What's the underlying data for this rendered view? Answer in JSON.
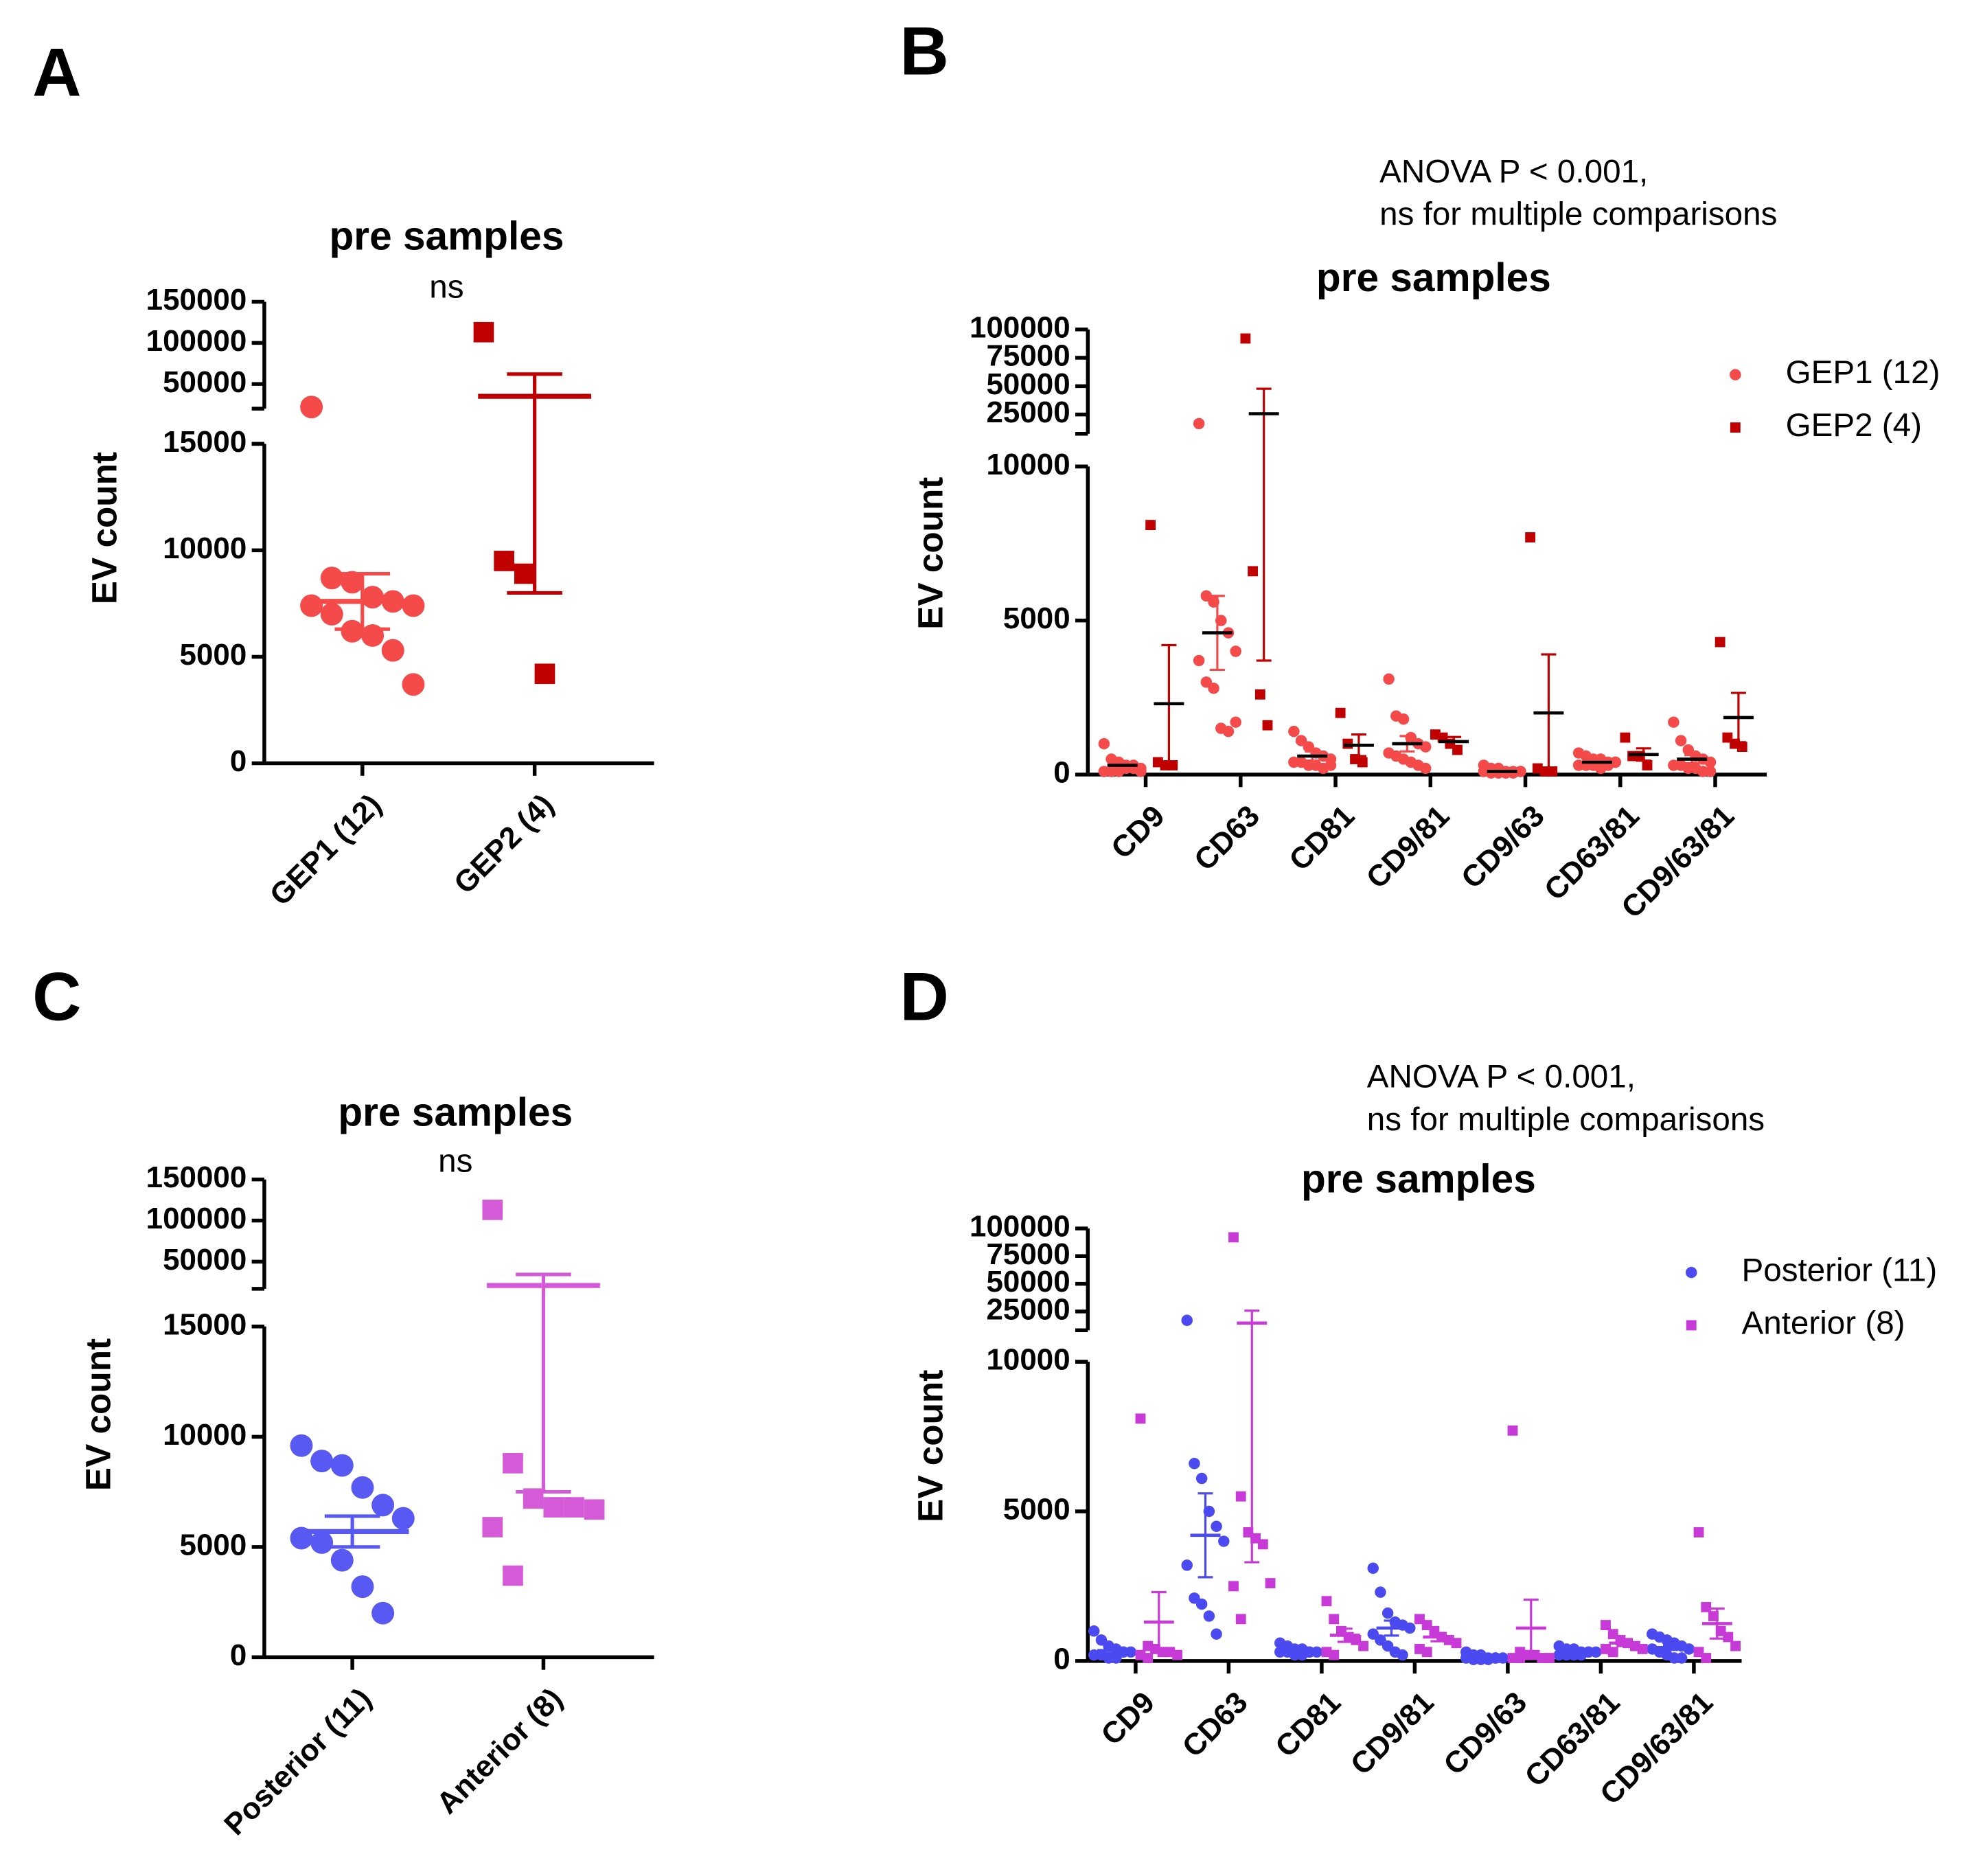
{
  "chart_data": [
    {
      "type": "dot",
      "panel_label": "A",
      "title": "pre samples",
      "subtitle": "ns",
      "ylabel": "EV count",
      "categories": [
        "GEP1 (12)",
        "GEP2 (4)"
      ],
      "values": [
        [
          22000,
          8700,
          8500,
          7800,
          7600,
          7400,
          7400,
          7000,
          6200,
          6000,
          5300,
          3700
        ],
        [
          113000,
          9500,
          8900,
          4200
        ]
      ],
      "colors": [
        "#f54a4a",
        "#c00000"
      ],
      "markers": [
        "circle",
        "square"
      ],
      "means": [
        7600,
        35000
      ],
      "errors": [
        1300,
        27000
      ],
      "ylim": [
        0,
        15000
      ],
      "yticks": [
        0,
        5000,
        10000,
        15000
      ],
      "ylim_upper": [
        20000,
        150000
      ],
      "yticks_upper": [
        50000,
        100000,
        150000
      ]
    },
    {
      "type": "grouped-dot",
      "panel_label": "B",
      "title": "pre samples",
      "annotation": [
        "ANOVA P < 0.001,",
        "ns for multiple comparisons"
      ],
      "ylabel": "EV count",
      "categories": [
        "CD9",
        "CD63",
        "CD81",
        "CD9/81",
        "CD9/63",
        "CD63/81",
        "CD9/63/81"
      ],
      "mean_color": "#000000",
      "series": [
        {
          "name": "GEP1 (12)",
          "color": "#f54a4a",
          "marker": "circle",
          "values": [
            [
              1000,
              500,
              400,
              300,
              200,
              200,
              100,
              100,
              100,
              200,
              300,
              100
            ],
            [
              17000,
              5800,
              5600,
              5000,
              4600,
              4000,
              3700,
              3000,
              2800,
              1500,
              1400,
              1700
            ],
            [
              1400,
              1100,
              900,
              700,
              600,
              500,
              400,
              400,
              300,
              300,
              200,
              300
            ],
            [
              3100,
              1900,
              1800,
              1200,
              1000,
              900,
              700,
              600,
              500,
              400,
              300,
              200
            ],
            [
              300,
              200,
              200,
              100,
              100,
              100,
              100,
              50,
              50,
              50,
              50,
              100
            ],
            [
              700,
              600,
              500,
              500,
              400,
              400,
              300,
              300,
              300,
              200,
              300,
              400
            ],
            [
              1700,
              1100,
              800,
              600,
              500,
              400,
              300,
              300,
              200,
              200,
              100,
              100
            ]
          ],
          "means": [
            300,
            4600,
            600,
            1000,
            100,
            400,
            500
          ],
          "errors": [
            80,
            1200,
            150,
            250,
            30,
            60,
            130
          ]
        },
        {
          "name": "GEP2 (4)",
          "color": "#c00000",
          "marker": "square",
          "values": [
            [
              8100,
              400,
              300,
              300
            ],
            [
              92000,
              6600,
              2600,
              1600
            ],
            [
              2000,
              1000,
              500,
              400
            ],
            [
              1300,
              1200,
              1000,
              800
            ],
            [
              7700,
              200,
              100,
              100
            ],
            [
              1200,
              600,
              600,
              300
            ],
            [
              4300,
              1200,
              1000,
              900
            ]
          ],
          "means": [
            2300,
            25700,
            950,
            1070,
            2000,
            650,
            1850
          ],
          "errors": [
            1900,
            22000,
            350,
            150,
            1900,
            200,
            800
          ]
        }
      ],
      "ylim": [
        0,
        10000
      ],
      "yticks": [
        0,
        5000,
        10000
      ],
      "ylim_upper": [
        8000,
        100000
      ],
      "yticks_upper": [
        25000,
        50000,
        75000,
        100000
      ]
    },
    {
      "type": "dot",
      "panel_label": "C",
      "title": "pre samples",
      "subtitle": "ns",
      "ylabel": "EV count",
      "categories": [
        "Posterior (11)",
        "Anterior (8)"
      ],
      "values": [
        [
          9600,
          8900,
          8700,
          7700,
          6900,
          6300,
          5400,
          5200,
          4400,
          3200,
          2000
        ],
        [
          113000,
          8800,
          7200,
          6800,
          6800,
          6700,
          5900,
          3700
        ]
      ],
      "colors": [
        "#5858f2",
        "#d45ad8"
      ],
      "markers": [
        "circle",
        "square"
      ],
      "means": [
        5700,
        21000
      ],
      "errors": [
        700,
        13500
      ],
      "ylim": [
        0,
        15000
      ],
      "yticks": [
        0,
        5000,
        10000,
        15000
      ],
      "ylim_upper": [
        17000,
        150000
      ],
      "yticks_upper": [
        50000,
        100000,
        150000
      ]
    },
    {
      "type": "grouped-dot",
      "panel_label": "D",
      "title": "pre samples",
      "annotation": [
        "ANOVA P < 0.001,",
        "ns for multiple comparisons"
      ],
      "ylabel": "EV count",
      "categories": [
        "CD9",
        "CD63",
        "CD81",
        "CD9/81",
        "CD9/63",
        "CD63/81",
        "CD9/63/81"
      ],
      "series": [
        {
          "name": "Posterior (11)",
          "color": "#4a4af0",
          "marker": "circle",
          "values": [
            [
              1000,
              700,
              500,
              400,
              300,
              300,
              200,
              200,
              100,
              100,
              300
            ],
            [
              17000,
              6600,
              6100,
              5000,
              4500,
              4000,
              3200,
              2100,
              1900,
              1500,
              900
            ],
            [
              600,
              500,
              400,
              400,
              300,
              300,
              300,
              300,
              200,
              200,
              300
            ],
            [
              3100,
              2300,
              1600,
              1300,
              1200,
              1100,
              900,
              700,
              500,
              300,
              200
            ],
            [
              300,
              200,
              200,
              100,
              100,
              100,
              100,
              50,
              50,
              50,
              100
            ],
            [
              500,
              400,
              400,
              300,
              300,
              300,
              200,
              200,
              200,
              200,
              300
            ],
            [
              900,
              800,
              700,
              600,
              500,
              400,
              400,
              300,
              200,
              100,
              100
            ]
          ],
          "means": [
            350,
            4200,
            350,
            1100,
            110,
            300,
            450
          ],
          "errors": [
            90,
            1400,
            40,
            250,
            25,
            30,
            80
          ]
        },
        {
          "name": "Anterior (8)",
          "color": "#c83ad8",
          "marker": "square",
          "values": [
            [
              8100,
              500,
              400,
              300,
              300,
              200,
              200,
              100
            ],
            [
              92000,
              5500,
              4300,
              4100,
              3900,
              2600,
              2500,
              1400
            ],
            [
              2000,
              1400,
              1000,
              800,
              700,
              500,
              300,
              200
            ],
            [
              1400,
              1200,
              1000,
              800,
              700,
              600,
              400,
              300
            ],
            [
              7700,
              300,
              200,
              200,
              100,
              100,
              100,
              100
            ],
            [
              1200,
              900,
              700,
              600,
              500,
              400,
              400,
              300
            ],
            [
              4300,
              1800,
              1500,
              1000,
              800,
              500,
              300,
              100
            ]
          ],
          "means": [
            1300,
            14500,
            860,
            800,
            1100,
            600,
            1250
          ],
          "errors": [
            1000,
            11200,
            220,
            140,
            950,
            100,
            500
          ]
        }
      ],
      "ylim": [
        0,
        10000
      ],
      "yticks": [
        0,
        5000,
        10000
      ],
      "ylim_upper": [
        8000,
        100000
      ],
      "yticks_upper": [
        25000,
        50000,
        75000,
        100000
      ]
    }
  ]
}
